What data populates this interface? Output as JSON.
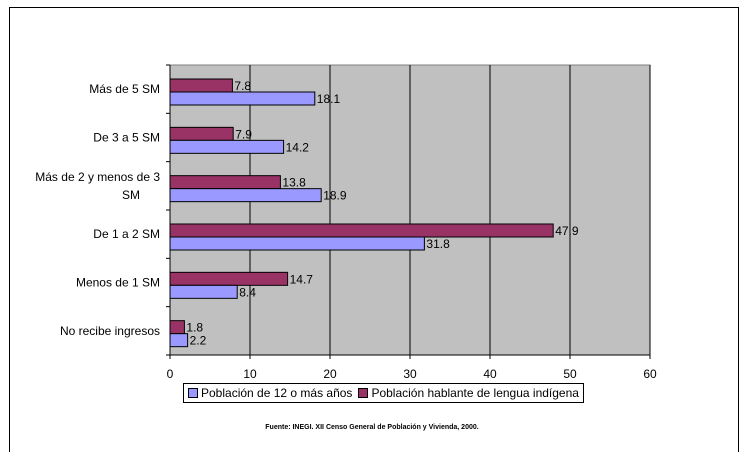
{
  "chart_data": {
    "type": "bar",
    "orientation": "horizontal",
    "categories": [
      "Más de 5 SM",
      "De 3 a 5 SM",
      "Más de 2 y menos de 3 SM",
      "De 1 a 2 SM",
      "Menos de 1 SM",
      "No recibe ingresos"
    ],
    "category_lines": [
      [
        "Más de 5 SM"
      ],
      [
        "De 3 a 5 SM"
      ],
      [
        "Más de 2 y menos de 3",
        "SM"
      ],
      [
        "De 1 a 2 SM"
      ],
      [
        "Menos de 1 SM"
      ],
      [
        "No recibe ingresos"
      ]
    ],
    "series": [
      {
        "name": "Población hablante de lengua indígena",
        "color": "#993366",
        "values": [
          7.8,
          7.9,
          13.8,
          47.9,
          14.7,
          1.8
        ],
        "labels": [
          "7.8",
          "7.9",
          "13.8",
          "47.9",
          "14.7",
          "1.8"
        ]
      },
      {
        "name": "Población de 12 o más años",
        "color": "#9999ff",
        "values": [
          18.1,
          14.2,
          18.9,
          31.8,
          8.4,
          2.2
        ],
        "labels": [
          "18.1",
          "14.2",
          "18.9",
          "31.8",
          "8.4",
          "2.2"
        ]
      }
    ],
    "xlim": [
      0,
      60
    ],
    "xticks": [
      0,
      10,
      20,
      30,
      40,
      50,
      60
    ],
    "grid": true,
    "plot_background": "#c0c0c0",
    "legend_position": "bottom"
  },
  "legend": {
    "items": [
      {
        "label": "Población de 12 o más años",
        "color": "#9999ff"
      },
      {
        "label": "Población hablante de lengua indígena",
        "color": "#993366"
      }
    ]
  },
  "source": "Fuente: INEGI. XII Censo General de Población y Vivienda, 2000."
}
